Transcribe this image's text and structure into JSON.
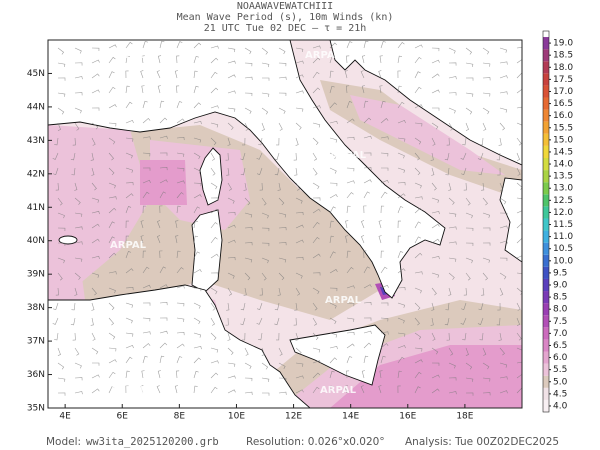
{
  "header": {
    "lines": [
      "NOAAWAVEWATCHIII",
      "Mean Wave Period (s), 10m Winds (kn)",
      "21 UTC Tue 02 DEC  –  τ = 21h"
    ]
  },
  "map": {
    "lonlim": [
      3.4,
      20
    ],
    "latlim": [
      35,
      46
    ],
    "lonticks": [
      {
        "value": 4,
        "label": "4E"
      },
      {
        "value": 6,
        "label": "6E"
      },
      {
        "value": 8,
        "label": "8E"
      },
      {
        "value": 10,
        "label": "10E"
      },
      {
        "value": 12,
        "label": "12E"
      },
      {
        "value": 14,
        "label": "14E"
      },
      {
        "value": 16,
        "label": "16E"
      },
      {
        "value": 18,
        "label": "18E"
      }
    ],
    "latticks": [
      {
        "value": 35,
        "label": "35N"
      },
      {
        "value": 36,
        "label": "36N"
      },
      {
        "value": 37,
        "label": "37N"
      },
      {
        "value": 38,
        "label": "38N"
      },
      {
        "value": 39,
        "label": "39N"
      },
      {
        "value": 40,
        "label": "40N"
      },
      {
        "value": 41,
        "label": "41N"
      },
      {
        "value": 42,
        "label": "42N"
      },
      {
        "value": 43,
        "label": "43N"
      },
      {
        "value": 44,
        "label": "44N"
      },
      {
        "value": 45,
        "label": "45N"
      }
    ],
    "watermark": "ARPAL"
  },
  "colorbar": {
    "lim": [
      3.75,
      19.5
    ],
    "ticks": [
      {
        "value": 4,
        "label": "4.0"
      },
      {
        "value": 4.5,
        "label": "4.5"
      },
      {
        "value": 5,
        "label": "5.0"
      },
      {
        "value": 5.5,
        "label": "5.5"
      },
      {
        "value": 6,
        "label": "6.0"
      },
      {
        "value": 6.5,
        "label": "6.5"
      },
      {
        "value": 7,
        "label": "7.0"
      },
      {
        "value": 7.5,
        "label": "7.5"
      },
      {
        "value": 8,
        "label": "8.0"
      },
      {
        "value": 8.5,
        "label": "8.5"
      },
      {
        "value": 9,
        "label": "9.0"
      },
      {
        "value": 9.5,
        "label": "9.5"
      },
      {
        "value": 10,
        "label": "10.0"
      },
      {
        "value": 10.5,
        "label": "10.5"
      },
      {
        "value": 11,
        "label": "11.0"
      },
      {
        "value": 11.5,
        "label": "11.5"
      },
      {
        "value": 12,
        "label": "12.0"
      },
      {
        "value": 12.5,
        "label": "12.5"
      },
      {
        "value": 13,
        "label": "13.0"
      },
      {
        "value": 13.5,
        "label": "13.5"
      },
      {
        "value": 14,
        "label": "14.0"
      },
      {
        "value": 14.5,
        "label": "14.5"
      },
      {
        "value": 15,
        "label": "15.0"
      },
      {
        "value": 15.5,
        "label": "15.5"
      },
      {
        "value": 16,
        "label": "16.0"
      },
      {
        "value": 16.5,
        "label": "16.5"
      },
      {
        "value": 17,
        "label": "17.0"
      },
      {
        "value": 17.5,
        "label": "17.5"
      },
      {
        "value": 18,
        "label": "18.0"
      },
      {
        "value": 18.5,
        "label": "18.5"
      },
      {
        "value": 19,
        "label": "19.0"
      }
    ],
    "colors": [
      "#f8f0f3",
      "#f1e2e7",
      "#dccabd",
      "#ecc2da",
      "#e4a5cf",
      "#da86c5",
      "#cc6bbd",
      "#b24fb6",
      "#9a3fb3",
      "#7a3ab6",
      "#5a3fbc",
      "#3f52c4",
      "#3a6fd0",
      "#3f90dc",
      "#3fb0e0",
      "#3fc6c8",
      "#3fc79a",
      "#4fc46a",
      "#7ccb4c",
      "#a9d344",
      "#d3dc3f",
      "#f0d83a",
      "#f4bf36",
      "#f2a233",
      "#ee8632",
      "#e66a33",
      "#d95236",
      "#c8423e",
      "#b23a55",
      "#9d3a78",
      "#8a3a9a"
    ]
  },
  "footer": {
    "model_label": "Model:",
    "model": "ww3ita_2025120200.grb",
    "resolution": "Resolution: 0.026°x0.020°",
    "analysis": "Analysis: Tue 00Z02DEC2025"
  }
}
